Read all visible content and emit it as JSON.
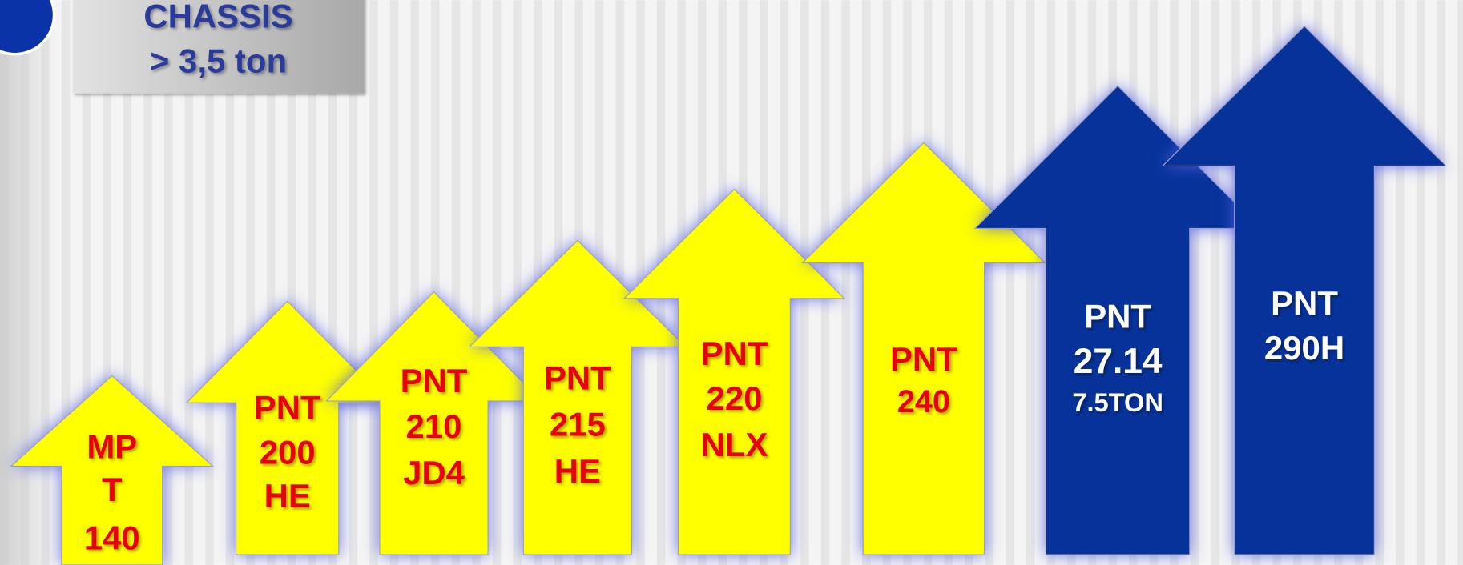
{
  "header": {
    "lines": [
      "CHASSIS",
      "> 3,5 ton"
    ]
  },
  "arrows": [
    {
      "lines": [
        "MP",
        "T",
        "140"
      ],
      "color": "yellow"
    },
    {
      "lines": [
        "PNT",
        "200",
        "HE"
      ],
      "color": "yellow"
    },
    {
      "lines": [
        "PNT",
        "210",
        "JD4"
      ],
      "color": "yellow"
    },
    {
      "lines": [
        "PNT",
        "215",
        "HE"
      ],
      "color": "yellow"
    },
    {
      "lines": [
        "PNT",
        "220",
        "NLX"
      ],
      "color": "yellow"
    },
    {
      "lines": [
        "PNT",
        "240"
      ],
      "color": "yellow"
    },
    {
      "lines": [
        "PNT",
        "27.14",
        "7.5TON"
      ],
      "color": "blue"
    },
    {
      "lines": [
        "PNT",
        "290H"
      ],
      "color": "blue"
    }
  ]
}
